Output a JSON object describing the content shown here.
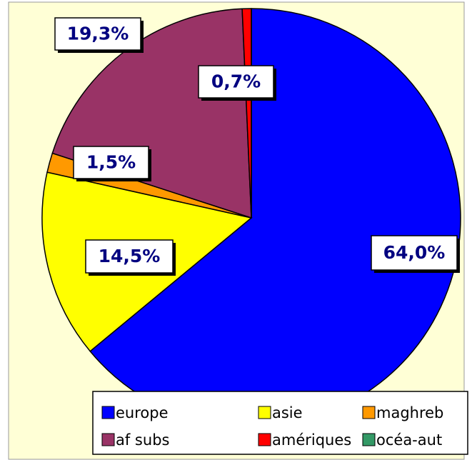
{
  "chart_data": {
    "type": "pie",
    "categories": [
      "europe",
      "asie",
      "maghreb",
      "af subs",
      "amériques",
      "océa-aut"
    ],
    "values": [
      64.0,
      14.5,
      1.5,
      19.3,
      0.7,
      0
    ],
    "value_labels": [
      "64,0%",
      "14,5%",
      "1,5%",
      "19,3%",
      "0,7%",
      null
    ],
    "colors": [
      "#0000ff",
      "#ffff00",
      "#ff9900",
      "#993366",
      "#ff0000",
      "#339966"
    ],
    "start_angle": 0,
    "direction": "clockwise",
    "legend": "bottom"
  }
}
